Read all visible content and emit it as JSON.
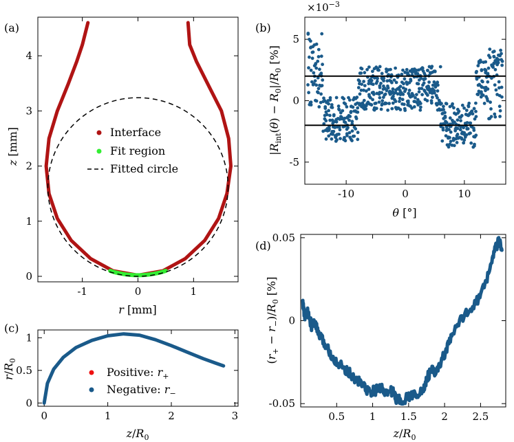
{
  "chart_data": [
    {
      "panel": "(a)",
      "type": "line",
      "xlabel": "r [mm]",
      "ylabel": "z [mm]",
      "xlim": [
        -1.8,
        1.8
      ],
      "ylim": [
        -0.1,
        4.7
      ],
      "xticks": [
        "-1",
        "0",
        "1"
      ],
      "yticks": [
        "0",
        "1",
        "2",
        "3",
        "4"
      ],
      "colors": {
        "interface": "#b01414",
        "fit": "#33ee33",
        "circle": "#000000"
      },
      "series": [
        {
          "name": "Interface",
          "points": [
            [
              -0.9,
              4.6
            ],
            [
              -1.0,
              4.2
            ],
            [
              -1.1,
              3.9
            ],
            [
              -1.25,
              3.5
            ],
            [
              -1.45,
              3.0
            ],
            [
              -1.6,
              2.5
            ],
            [
              -1.65,
              2.0
            ],
            [
              -1.6,
              1.5
            ],
            [
              -1.45,
              1.05
            ],
            [
              -1.2,
              0.65
            ],
            [
              -0.85,
              0.32
            ],
            [
              -0.45,
              0.1
            ],
            [
              0,
              0.02
            ],
            [
              0.45,
              0.1
            ],
            [
              0.85,
              0.32
            ],
            [
              1.2,
              0.65
            ],
            [
              1.45,
              1.05
            ],
            [
              1.6,
              1.5
            ],
            [
              1.67,
              2.0
            ],
            [
              1.63,
              2.5
            ],
            [
              1.5,
              3.0
            ],
            [
              1.25,
              3.5
            ],
            [
              1.05,
              3.9
            ],
            [
              0.93,
              4.2
            ],
            [
              0.9,
              4.6
            ]
          ]
        },
        {
          "name": "Fit region",
          "x_range": [
            -0.5,
            0.5
          ]
        },
        {
          "name": "Fitted circle",
          "center": [
            0,
            1.62
          ],
          "radius": 1.62
        }
      ]
    },
    {
      "panel": "(b)",
      "type": "scatter",
      "xlabel": "θ [°]",
      "ylabel": "|R_int(θ) − R_0|/R_0 [%]",
      "multiplier": "×10−3",
      "xlim": [
        -17,
        17
      ],
      "ylim": [
        -6.8,
        6.8
      ],
      "xticks": [
        "-10",
        "0",
        "10"
      ],
      "yticks": [
        "5",
        "0",
        "-5"
      ],
      "hlines": [
        2,
        -2
      ],
      "color": "#1a5a8a",
      "points_description": "noisy deviations, mostly between -3 and 3, larger near |θ|=16"
    },
    {
      "panel": "(c)",
      "type": "line",
      "xlabel": "z/R0",
      "ylabel": "r/R0",
      "xlim": [
        -0.1,
        3.05
      ],
      "ylim": [
        -0.05,
        1.12
      ],
      "xticks": [
        "0",
        "1",
        "2",
        "3"
      ],
      "yticks": [
        "0",
        "0.5",
        "1"
      ],
      "series": [
        {
          "name": "Positive: r+",
          "color": "#ee1111",
          "points": [
            [
              0,
              0
            ],
            [
              0.05,
              0.3
            ],
            [
              0.15,
              0.52
            ],
            [
              0.3,
              0.7
            ],
            [
              0.5,
              0.85
            ],
            [
              0.75,
              0.96
            ],
            [
              1.0,
              1.03
            ],
            [
              1.25,
              1.06
            ],
            [
              1.5,
              1.04
            ],
            [
              1.75,
              0.97
            ],
            [
              2.0,
              0.88
            ],
            [
              2.25,
              0.78
            ],
            [
              2.5,
              0.68
            ],
            [
              2.7,
              0.61
            ],
            [
              2.82,
              0.57
            ]
          ]
        },
        {
          "name": "Negative: r−",
          "color": "#1a5a8a",
          "points": [
            [
              0,
              0
            ],
            [
              0.05,
              0.3
            ],
            [
              0.15,
              0.52
            ],
            [
              0.3,
              0.7
            ],
            [
              0.5,
              0.85
            ],
            [
              0.75,
              0.96
            ],
            [
              1.0,
              1.03
            ],
            [
              1.25,
              1.06
            ],
            [
              1.5,
              1.04
            ],
            [
              1.75,
              0.97
            ],
            [
              2.0,
              0.88
            ],
            [
              2.25,
              0.78
            ],
            [
              2.5,
              0.68
            ],
            [
              2.7,
              0.61
            ],
            [
              2.82,
              0.57
            ]
          ]
        }
      ]
    },
    {
      "panel": "(d)",
      "type": "line",
      "xlabel": "z/R0",
      "ylabel": "(r+ − r−)/R0 [%]",
      "xlim": [
        0,
        2.85
      ],
      "ylim": [
        -0.052,
        0.052
      ],
      "xticks": [
        "0.5",
        "1",
        "1.5",
        "2",
        "2.5"
      ],
      "yticks": [
        "0.05",
        "0",
        "-0.05"
      ],
      "color": "#1a5a8a",
      "points": [
        [
          0.03,
          0.01
        ],
        [
          0.06,
          0.002
        ],
        [
          0.1,
          0.005
        ],
        [
          0.15,
          -0.003
        ],
        [
          0.2,
          -0.002
        ],
        [
          0.27,
          -0.01
        ],
        [
          0.35,
          -0.015
        ],
        [
          0.45,
          -0.022
        ],
        [
          0.55,
          -0.027
        ],
        [
          0.65,
          -0.03
        ],
        [
          0.75,
          -0.035
        ],
        [
          0.85,
          -0.038
        ],
        [
          0.95,
          -0.043
        ],
        [
          1.05,
          -0.042
        ],
        [
          1.12,
          -0.04
        ],
        [
          1.2,
          -0.044
        ],
        [
          1.28,
          -0.042
        ],
        [
          1.32,
          -0.047
        ],
        [
          1.4,
          -0.048
        ],
        [
          1.5,
          -0.046
        ],
        [
          1.6,
          -0.044
        ],
        [
          1.7,
          -0.043
        ],
        [
          1.75,
          -0.035
        ],
        [
          1.82,
          -0.03
        ],
        [
          1.88,
          -0.032
        ],
        [
          1.95,
          -0.025
        ],
        [
          2.05,
          -0.015
        ],
        [
          2.15,
          -0.005
        ],
        [
          2.3,
          0.005
        ],
        [
          2.45,
          0.012
        ],
        [
          2.55,
          0.02
        ],
        [
          2.65,
          0.035
        ],
        [
          2.72,
          0.045
        ],
        [
          2.76,
          0.048
        ],
        [
          2.8,
          0.04
        ]
      ]
    }
  ],
  "text": {
    "a_panel": "(a)",
    "b_panel": "(b)",
    "c_panel": "(c)",
    "d_panel": "(d)",
    "legend_interface": "Interface",
    "legend_fit": "Fit region",
    "legend_circle": "Fitted circle",
    "legend_pos": "Positive: r+",
    "legend_neg": "Negative: r−"
  }
}
